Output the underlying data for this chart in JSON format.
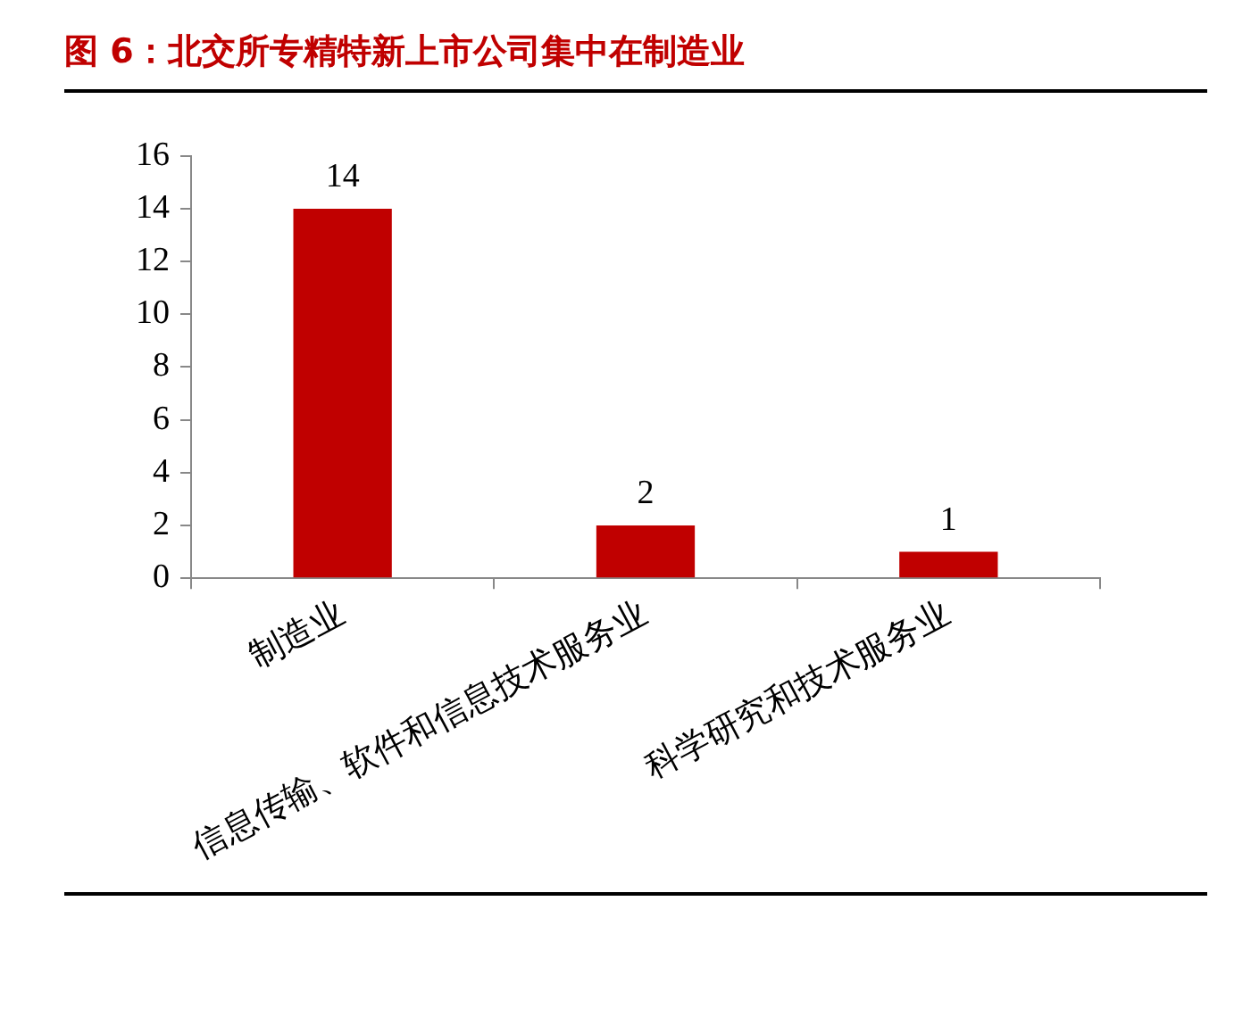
{
  "chart_data": {
    "type": "bar",
    "title": "图 6：北交所专精特新上市公司集中在制造业",
    "categories": [
      "制造业",
      "信息传输、软件和信息技术服务业",
      "科学研究和技术服务业"
    ],
    "values": [
      14,
      2,
      1
    ],
    "color": "#c00000",
    "ylim": [
      0,
      16
    ],
    "yticks": [
      0,
      2,
      4,
      6,
      8,
      10,
      12,
      14,
      16
    ],
    "grid": false,
    "legend": false,
    "data_labels": true
  }
}
